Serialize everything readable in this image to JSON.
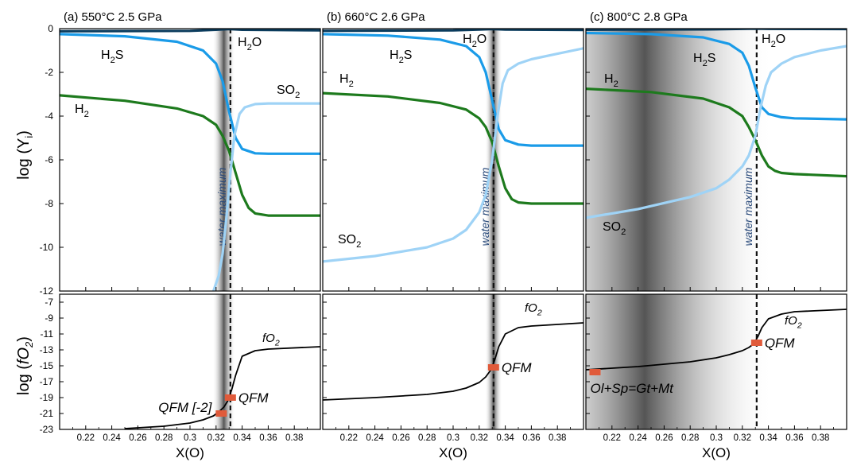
{
  "ylabel_top": "log (Y",
  "ylabel_top_sub": "i",
  "ylabel_bottom": "log (",
  "ylabel_bottom_f": "fO",
  "ylabel_bottom_sub": "2",
  "xlabel": "X(O)",
  "colors": {
    "H2O": "#0b3c5d",
    "H2S": "#1a9be8",
    "SO2": "#9fd3f6",
    "H2": "#1d7a1d",
    "fO2": "#000000",
    "marker": "#e05a3a"
  },
  "panels": [
    {
      "title": "(a) 550°C  2.5 GPa",
      "band_center": 0.326,
      "band_halfwidth": 0.004,
      "water_max_x": 0.331,
      "water_max_label": "water maximum",
      "labels": {
        "H2O": "H",
        "H2S": "H",
        "H2": "H",
        "SO2": "SO",
        "fO2": "fO"
      },
      "markers": [
        {
          "label": "QFM",
          "x": 0.331,
          "y": -19.0
        },
        {
          "label": "QFM [-2]",
          "x": 0.324,
          "y": -21.0
        }
      ]
    },
    {
      "title": "(b) 660°C  2.6 GPa",
      "band_center": 0.331,
      "band_halfwidth": 0.003,
      "water_max_x": 0.331,
      "water_max_label": "water maximum",
      "labels": {
        "H2O": "H",
        "H2S": "H",
        "H2": "H",
        "SO2": "SO",
        "fO2": "fO"
      },
      "markers": [
        {
          "label": "QFM",
          "x": 0.331,
          "y": -15.2
        }
      ]
    },
    {
      "title": "(c) 800°C  2.8 GPa",
      "band_center": 0.245,
      "band_halfwidth": 0.045,
      "water_max_x": 0.331,
      "water_max_label": "water maximum",
      "labels": {
        "H2O": "H",
        "H2S": "H",
        "H2": "H",
        "SO2": "SO",
        "fO2": "fO"
      },
      "markers": [
        {
          "label": "QFM",
          "x": 0.331,
          "y": -12.1
        },
        {
          "label": "Ol+Sp=Gt+Mt",
          "x": 0.207,
          "y": -15.8
        }
      ]
    }
  ],
  "chart_data": {
    "type": "line",
    "xlim": [
      0.2,
      0.4
    ],
    "xticks": [
      0.22,
      0.24,
      0.26,
      0.28,
      0.3,
      0.32,
      0.34,
      0.36,
      0.38
    ],
    "top_ylim": [
      -12,
      0
    ],
    "top_yticks": [
      0,
      -2,
      -4,
      -6,
      -8,
      -10,
      -12
    ],
    "bottom_ylim": [
      -23,
      -6
    ],
    "bottom_yticks": [
      -7,
      -9,
      -11,
      -13,
      -15,
      -17,
      -19,
      -21,
      -23
    ],
    "panels": [
      {
        "title": "(a) 550°C  2.5 GPa",
        "series": [
          {
            "name": "H2O",
            "x": [
              0.2,
              0.3,
              0.32,
              0.33,
              0.34,
              0.4
            ],
            "y": [
              -0.12,
              -0.1,
              -0.05,
              -0.02,
              -0.05,
              -0.08
            ]
          },
          {
            "name": "H2S",
            "x": [
              0.2,
              0.25,
              0.29,
              0.31,
              0.32,
              0.325,
              0.33,
              0.335,
              0.34,
              0.35,
              0.36,
              0.4
            ],
            "y": [
              -0.25,
              -0.35,
              -0.6,
              -1.0,
              -1.6,
              -2.4,
              -3.8,
              -5.0,
              -5.5,
              -5.7,
              -5.72,
              -5.72
            ]
          },
          {
            "name": "H2",
            "x": [
              0.2,
              0.25,
              0.29,
              0.31,
              0.32,
              0.325,
              0.33,
              0.335,
              0.34,
              0.345,
              0.35,
              0.36,
              0.4
            ],
            "y": [
              -3.05,
              -3.3,
              -3.65,
              -4.0,
              -4.4,
              -4.9,
              -5.6,
              -6.6,
              -7.6,
              -8.2,
              -8.45,
              -8.55,
              -8.55
            ]
          },
          {
            "name": "SO2",
            "x": [
              0.318,
              0.322,
              0.325,
              0.328,
              0.331,
              0.334,
              0.338,
              0.342,
              0.35,
              0.36,
              0.4
            ],
            "y": [
              -12.0,
              -11.3,
              -10.3,
              -8.6,
              -6.6,
              -4.9,
              -3.9,
              -3.6,
              -3.45,
              -3.42,
              -3.42
            ]
          },
          {
            "name": "fO2",
            "x": [
              0.25,
              0.28,
              0.3,
              0.31,
              0.318,
              0.322,
              0.326,
              0.329,
              0.332,
              0.335,
              0.34,
              0.35,
              0.36,
              0.4
            ],
            "y": [
              -22.9,
              -22.6,
              -22.2,
              -21.8,
              -21.3,
              -20.8,
              -20.2,
              -19.4,
              -18.0,
              -16.2,
              -13.8,
              -13.1,
              -12.9,
              -12.6
            ]
          }
        ]
      },
      {
        "title": "(b) 660°C  2.6 GPa",
        "series": [
          {
            "name": "H2O",
            "x": [
              0.2,
              0.3,
              0.32,
              0.33,
              0.34,
              0.4
            ],
            "y": [
              -0.1,
              -0.08,
              -0.04,
              -0.02,
              -0.04,
              -0.06
            ]
          },
          {
            "name": "H2S",
            "x": [
              0.2,
              0.25,
              0.29,
              0.31,
              0.32,
              0.325,
              0.33,
              0.335,
              0.34,
              0.35,
              0.36,
              0.4
            ],
            "y": [
              -0.25,
              -0.32,
              -0.5,
              -0.8,
              -1.3,
              -2.0,
              -3.3,
              -4.6,
              -5.1,
              -5.3,
              -5.35,
              -5.35
            ]
          },
          {
            "name": "H2",
            "x": [
              0.2,
              0.25,
              0.29,
              0.31,
              0.32,
              0.325,
              0.33,
              0.335,
              0.34,
              0.345,
              0.35,
              0.36,
              0.4
            ],
            "y": [
              -2.95,
              -3.1,
              -3.4,
              -3.7,
              -4.1,
              -4.5,
              -5.2,
              -6.3,
              -7.3,
              -7.8,
              -7.95,
              -8.0,
              -8.0
            ]
          },
          {
            "name": "SO2",
            "x": [
              0.2,
              0.24,
              0.28,
              0.3,
              0.31,
              0.32,
              0.325,
              0.33,
              0.334,
              0.338,
              0.342,
              0.35,
              0.36,
              0.38,
              0.4
            ],
            "y": [
              -10.65,
              -10.4,
              -10.0,
              -9.6,
              -9.2,
              -8.4,
              -7.6,
              -6.0,
              -4.0,
              -2.5,
              -1.9,
              -1.6,
              -1.4,
              -1.15,
              -0.9
            ]
          },
          {
            "name": "fO2",
            "x": [
              0.2,
              0.24,
              0.28,
              0.3,
              0.31,
              0.32,
              0.325,
              0.329,
              0.332,
              0.335,
              0.34,
              0.35,
              0.36,
              0.4
            ],
            "y": [
              -19.3,
              -19.0,
              -18.6,
              -18.2,
              -17.8,
              -17.1,
              -16.4,
              -15.5,
              -14.2,
              -12.6,
              -11.0,
              -10.2,
              -10.0,
              -9.6
            ]
          }
        ]
      },
      {
        "title": "(c) 800°C  2.8 GPa",
        "series": [
          {
            "name": "H2O",
            "x": [
              0.2,
              0.3,
              0.32,
              0.33,
              0.34,
              0.4
            ],
            "y": [
              -0.05,
              -0.03,
              -0.01,
              0.0,
              -0.01,
              -0.02
            ]
          },
          {
            "name": "H2S",
            "x": [
              0.2,
              0.25,
              0.29,
              0.31,
              0.32,
              0.325,
              0.33,
              0.335,
              0.34,
              0.35,
              0.36,
              0.4
            ],
            "y": [
              -0.2,
              -0.25,
              -0.4,
              -0.7,
              -1.1,
              -1.7,
              -2.7,
              -3.6,
              -3.9,
              -4.05,
              -4.1,
              -4.15
            ]
          },
          {
            "name": "H2",
            "x": [
              0.2,
              0.25,
              0.29,
              0.31,
              0.32,
              0.325,
              0.33,
              0.335,
              0.34,
              0.345,
              0.35,
              0.36,
              0.4
            ],
            "y": [
              -2.75,
              -2.9,
              -3.2,
              -3.6,
              -4.0,
              -4.5,
              -5.1,
              -5.8,
              -6.3,
              -6.5,
              -6.6,
              -6.65,
              -6.75
            ]
          },
          {
            "name": "SO2",
            "x": [
              0.2,
              0.24,
              0.28,
              0.3,
              0.31,
              0.32,
              0.325,
              0.33,
              0.334,
              0.338,
              0.342,
              0.35,
              0.36,
              0.38,
              0.4
            ],
            "y": [
              -8.65,
              -8.25,
              -7.7,
              -7.3,
              -6.9,
              -6.3,
              -5.8,
              -4.9,
              -3.6,
              -2.6,
              -2.0,
              -1.6,
              -1.3,
              -1.0,
              -0.8
            ]
          },
          {
            "name": "fO2",
            "x": [
              0.2,
              0.24,
              0.28,
              0.3,
              0.31,
              0.32,
              0.325,
              0.329,
              0.332,
              0.335,
              0.34,
              0.35,
              0.36,
              0.4
            ],
            "y": [
              -15.5,
              -15.1,
              -14.5,
              -14.0,
              -13.6,
              -13.1,
              -12.7,
              -12.2,
              -11.3,
              -10.2,
              -9.1,
              -8.5,
              -8.2,
              -7.9
            ]
          }
        ]
      }
    ]
  }
}
